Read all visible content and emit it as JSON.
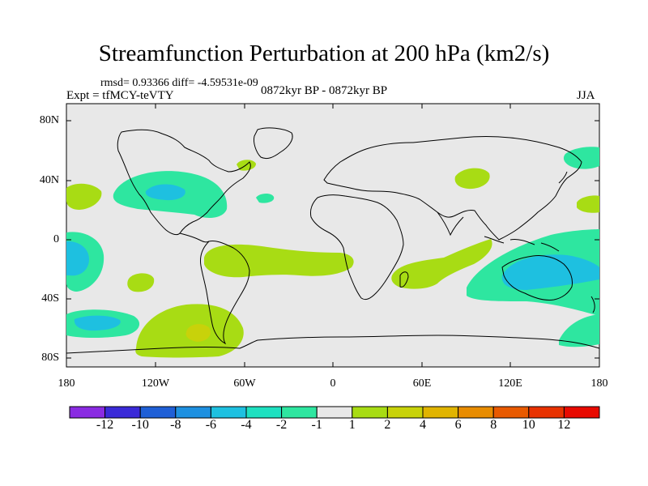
{
  "title": "Streamfunction Perturbation at 200 hPa (km2/s)",
  "stats": "rmsd= 0.93366 diff= -4.59531e-09",
  "experiment": "Expt = tfMCY-teVTY",
  "period": "0872kyr BP - 0872kyr BP",
  "season": "JJA",
  "lat_labels": [
    "80N",
    "40N",
    "0",
    "40S",
    "80S"
  ],
  "lon_labels": [
    "180",
    "120W",
    "60W",
    "0",
    "60E",
    "120E",
    "180"
  ],
  "colorbar": {
    "labels": [
      "-12",
      "-10",
      "-8",
      "-6",
      "-4",
      "-2",
      "-1",
      "1",
      "2",
      "4",
      "6",
      "8",
      "10",
      "12"
    ],
    "colors": [
      "#8a2be2",
      "#3a2ad8",
      "#1f5fd6",
      "#1e90e0",
      "#1ec0e0",
      "#1ee0c0",
      "#2ee6a0",
      "#e8e8e8",
      "#a8dc14",
      "#c8d20a",
      "#e0b400",
      "#e88c00",
      "#e85a00",
      "#e83200",
      "#e80a00"
    ]
  },
  "map_colors": {
    "neutral": "#e8e8e8",
    "neg1": "#2ee6a0",
    "neg2": "#1ec0e0",
    "pos1": "#a8dc14",
    "pos2": "#c8d20a"
  }
}
